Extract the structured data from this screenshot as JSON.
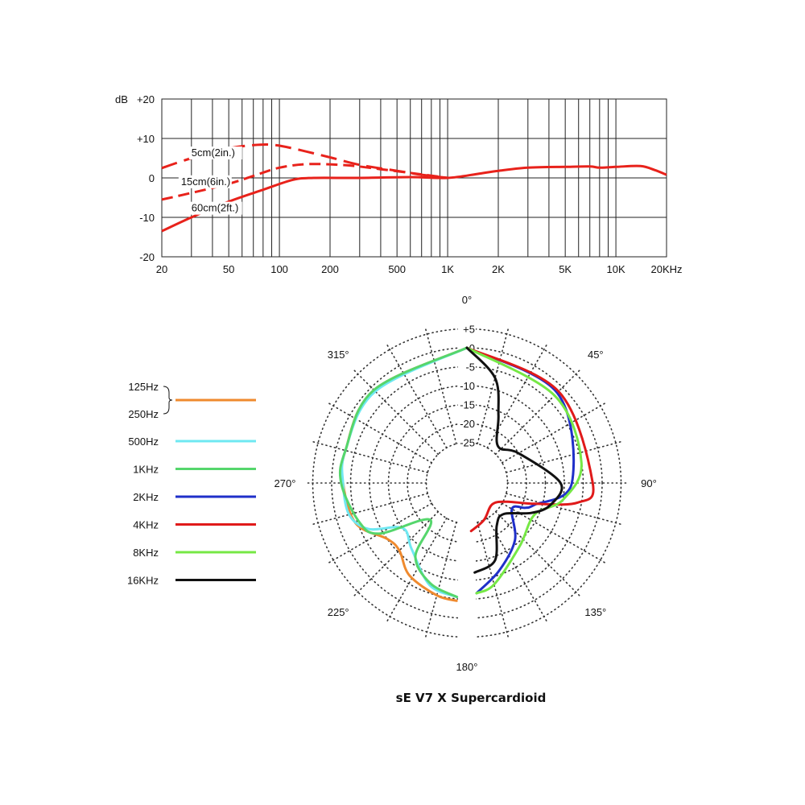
{
  "chart_data": [
    {
      "type": "line",
      "scale": "log-x",
      "xlim": [
        20,
        20000
      ],
      "ylim": [
        -20,
        20
      ],
      "grid": true,
      "y_unit_label": "dB",
      "y_ticks": [
        {
          "value": 20,
          "label": "+20"
        },
        {
          "value": 10,
          "label": "+10"
        },
        {
          "value": 0,
          "label": "0"
        },
        {
          "value": -10,
          "label": "-10"
        },
        {
          "value": -20,
          "label": "-20"
        }
      ],
      "x_tick_labels": [
        {
          "value": 20,
          "label": "20"
        },
        {
          "value": 50,
          "label": "50"
        },
        {
          "value": 100,
          "label": "100"
        },
        {
          "value": 200,
          "label": "200"
        },
        {
          "value": 500,
          "label": "500"
        },
        {
          "value": 1000,
          "label": "1K"
        },
        {
          "value": 2000,
          "label": "2K"
        },
        {
          "value": 5000,
          "label": "5K"
        },
        {
          "value": 10000,
          "label": "10K"
        },
        {
          "value": 20000,
          "label": "20KHz"
        }
      ],
      "x_gridlines": [
        20,
        30,
        40,
        50,
        60,
        70,
        80,
        90,
        100,
        200,
        300,
        400,
        500,
        600,
        700,
        800,
        900,
        1000,
        2000,
        3000,
        4000,
        5000,
        6000,
        7000,
        8000,
        9000,
        10000,
        20000
      ],
      "line_color": "#e8221b",
      "series": [
        {
          "name": "5cm(2in.)",
          "dash": "long",
          "label_at": [
            30,
            5.5
          ],
          "points": [
            [
              20,
              2.5
            ],
            [
              30,
              5
            ],
            [
              50,
              7.5
            ],
            [
              70,
              8.3
            ],
            [
              90,
              8.4
            ],
            [
              120,
              7.5
            ],
            [
              200,
              5.2
            ],
            [
              300,
              3.3
            ],
            [
              500,
              1.8
            ],
            [
              700,
              0.8
            ],
            [
              1000,
              0
            ]
          ]
        },
        {
          "name": "15cm(6in.)",
          "dash": "short",
          "label_at": [
            26,
            -1.8
          ],
          "points": [
            [
              20,
              -5.5
            ],
            [
              30,
              -3.8
            ],
            [
              50,
              -1.5
            ],
            [
              70,
              0.5
            ],
            [
              100,
              2.6
            ],
            [
              150,
              3.5
            ],
            [
              250,
              3.2
            ],
            [
              400,
              2.2
            ],
            [
              700,
              0.9
            ],
            [
              1000,
              0
            ]
          ]
        },
        {
          "name": "60cm(2ft.)",
          "dash": "solid",
          "label_at": [
            30,
            -8.5
          ],
          "points": [
            [
              20,
              -13.5
            ],
            [
              30,
              -10
            ],
            [
              50,
              -6
            ],
            [
              80,
              -3
            ],
            [
              120,
              -0.5
            ],
            [
              160,
              0
            ],
            [
              300,
              0
            ],
            [
              600,
              0.2
            ],
            [
              1000,
              0
            ],
            [
              1500,
              1
            ],
            [
              2000,
              1.8
            ],
            [
              3000,
              2.6
            ],
            [
              5000,
              2.8
            ],
            [
              7000,
              2.9
            ],
            [
              8000,
              2.6
            ],
            [
              10000,
              2.8
            ],
            [
              14000,
              3
            ],
            [
              17000,
              2
            ],
            [
              20000,
              0.8
            ]
          ]
        }
      ]
    },
    {
      "type": "polar",
      "title": "sE V7 X  Supercardioid",
      "angle_labels": [
        {
          "angle": 0,
          "label": "0°"
        },
        {
          "angle": 45,
          "label": "45°"
        },
        {
          "angle": 90,
          "label": "90°"
        },
        {
          "angle": 135,
          "label": "135°"
        },
        {
          "angle": 180,
          "label": "180°"
        },
        {
          "angle": 225,
          "label": "225°"
        },
        {
          "angle": 270,
          "label": "270°"
        },
        {
          "angle": 315,
          "label": "315°"
        }
      ],
      "r_range_db": [
        -30,
        5
      ],
      "r_ticks": [
        {
          "value": 5,
          "label": "+5"
        },
        {
          "value": 0,
          "label": "0"
        },
        {
          "value": -5,
          "label": "-5"
        },
        {
          "value": -10,
          "label": "-10"
        },
        {
          "value": -15,
          "label": "-15"
        },
        {
          "value": -20,
          "label": "-20"
        },
        {
          "value": -25,
          "label": "-25"
        }
      ],
      "legend": [
        {
          "labels": [
            "125Hz",
            "250Hz"
          ],
          "color": "#ef8a2e",
          "grouped": true
        },
        {
          "labels": [
            "500Hz"
          ],
          "color": "#6fe8f2"
        },
        {
          "labels": [
            "1KHz"
          ],
          "color": "#55d66c"
        },
        {
          "labels": [
            "2KHz"
          ],
          "color": "#1f2fc9"
        },
        {
          "labels": [
            "4KHz"
          ],
          "color": "#e01a1a"
        },
        {
          "labels": [
            "8KHz"
          ],
          "color": "#76e845"
        },
        {
          "labels": [
            "16KHz"
          ],
          "color": "#111111"
        }
      ],
      "series": [
        {
          "name": "125Hz / 250Hz",
          "color": "#ef8a2e",
          "points": [
            [
              0,
              0
            ],
            [
              315,
              -1
            ],
            [
              285,
              -2.5
            ],
            [
              270,
              -3
            ],
            [
              250,
              -4.5
            ],
            [
              235,
              -10
            ],
            [
              225,
              -10.5
            ],
            [
              212,
              -7
            ],
            [
              195,
              -5
            ],
            [
              185,
              -4.5
            ]
          ]
        },
        {
          "name": "500Hz",
          "color": "#6fe8f2",
          "points": [
            [
              0,
              0
            ],
            [
              315,
              -1.5
            ],
            [
              285,
              -2.5
            ],
            [
              270,
              -3
            ],
            [
              255,
              -3.5
            ],
            [
              245,
              -7
            ],
            [
              235,
              -15
            ],
            [
              220,
              -13
            ],
            [
              200,
              -7
            ],
            [
              185,
              -5.5
            ]
          ]
        },
        {
          "name": "1KHz",
          "color": "#55d66c",
          "points": [
            [
              0,
              0
            ],
            [
              315,
              -1
            ],
            [
              285,
              -2.5
            ],
            [
              270,
              -2.5
            ],
            [
              250,
              -5.5
            ],
            [
              240,
              -9
            ],
            [
              225,
              -22
            ],
            [
              215,
              -12
            ],
            [
              200,
              -7.5
            ],
            [
              185,
              -5.5
            ]
          ]
        },
        {
          "name": "2KHz",
          "color": "#1f2fc9",
          "points": [
            [
              0,
              0
            ],
            [
              45,
              -2
            ],
            [
              90,
              -8
            ],
            [
              108,
              -17
            ],
            [
              113,
              -19
            ],
            [
              120,
              -22
            ],
            [
              140,
              -16
            ],
            [
              160,
              -11
            ],
            [
              175,
              -6.5
            ]
          ]
        },
        {
          "name": "4KHz",
          "color": "#e01a1a",
          "points": [
            [
              0,
              0
            ],
            [
              45,
              -1.5
            ],
            [
              90,
              -2.5
            ],
            [
              100,
              -6
            ],
            [
              107,
              -17
            ],
            [
              115,
              -24
            ],
            [
              130,
              -27
            ],
            [
              155,
              -25
            ],
            [
              175,
              -23
            ]
          ]
        },
        {
          "name": "8KHz",
          "color": "#76e845",
          "points": [
            [
              0,
              0
            ],
            [
              45,
              -3
            ],
            [
              80,
              -5
            ],
            [
              100,
              -10
            ],
            [
              115,
              -16
            ],
            [
              140,
              -14
            ],
            [
              165,
              -8
            ],
            [
              175,
              -6.5
            ]
          ]
        },
        {
          "name": "16KHz",
          "color": "#111111",
          "points": [
            [
              0,
              0
            ],
            [
              15,
              -7
            ],
            [
              25,
              -16
            ],
            [
              40,
              -23
            ],
            [
              60,
              -20
            ],
            [
              90,
              -11
            ],
            [
              105,
              -13
            ],
            [
              115,
              -17
            ],
            [
              130,
              -23
            ],
            [
              145,
              -22
            ],
            [
              160,
              -14
            ],
            [
              175,
              -12
            ]
          ]
        }
      ]
    }
  ]
}
